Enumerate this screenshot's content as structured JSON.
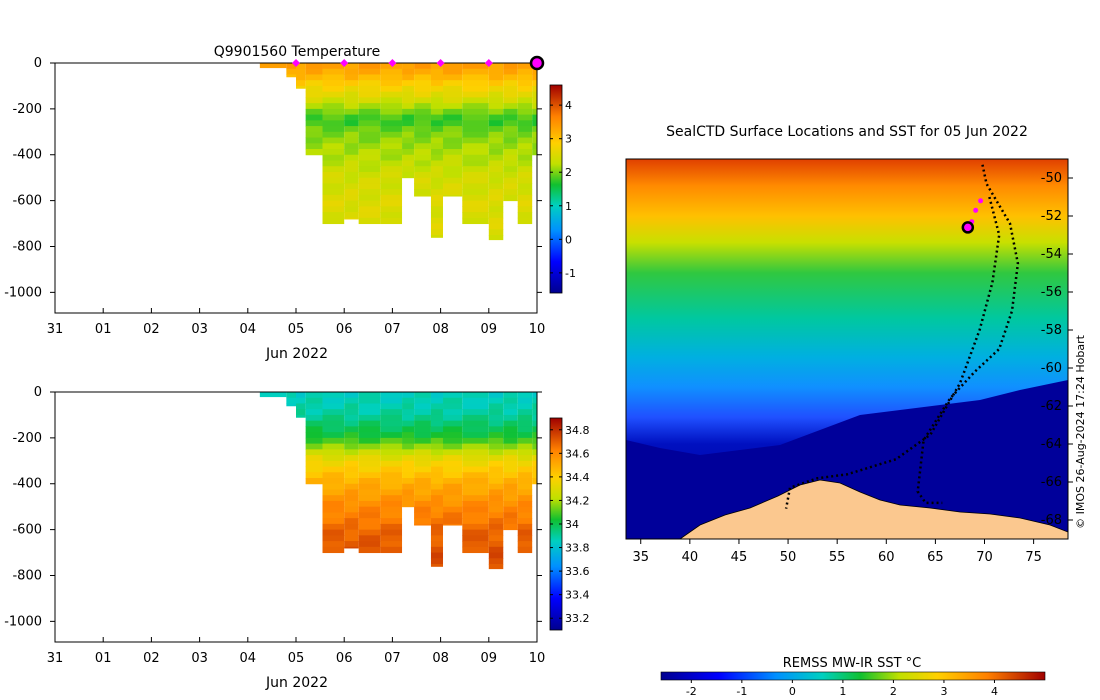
{
  "chart_data": [
    {
      "type": "heatmap",
      "title": "Q9901560  Temperature",
      "xlabel": "Jun 2022",
      "ylabel": "",
      "x_ticks": [
        "31",
        "01",
        "02",
        "03",
        "04",
        "05",
        "06",
        "07",
        "08",
        "09",
        "10"
      ],
      "x_range_days": [
        0,
        10
      ],
      "ylim": [
        -1090,
        0
      ],
      "y_ticks": [
        0,
        -200,
        -400,
        -600,
        -800,
        -1000
      ],
      "y_tick_labels": [
        "0",
        "-200",
        "-400",
        "-600",
        "-800",
        "-1000"
      ],
      "colorbar": {
        "range": [
          -1.6,
          4.6
        ],
        "ticks": [
          4,
          3,
          2,
          1,
          0,
          -1
        ],
        "tick_labels": [
          "4",
          "3",
          "2",
          "1",
          "0",
          "-1"
        ]
      },
      "profile_markers_day": [
        5,
        6,
        7,
        8,
        9
      ],
      "current_position_day": 10,
      "profiles": [
        {
          "day": 4.25,
          "max_depth": 20
        },
        {
          "day": 4.8,
          "max_depth": 60
        },
        {
          "day": 5.0,
          "max_depth": 110
        },
        {
          "day": 5.2,
          "max_depth": 400
        },
        {
          "day": 5.55,
          "max_depth": 700
        },
        {
          "day": 6.0,
          "max_depth": 680
        },
        {
          "day": 6.3,
          "max_depth": 700
        },
        {
          "day": 6.75,
          "max_depth": 700
        },
        {
          "day": 7.2,
          "max_depth": 500
        },
        {
          "day": 7.45,
          "max_depth": 580
        },
        {
          "day": 7.8,
          "max_depth": 760
        },
        {
          "day": 8.05,
          "max_depth": 580
        },
        {
          "day": 8.45,
          "max_depth": 700
        },
        {
          "day": 9.0,
          "max_depth": 770
        },
        {
          "day": 9.3,
          "max_depth": 600
        },
        {
          "day": 9.6,
          "max_depth": 700
        },
        {
          "day": 9.9,
          "max_depth": 400
        }
      ],
      "temperature_profile": {
        "depths": [
          0,
          50,
          100,
          150,
          200,
          250,
          300,
          400,
          500,
          600,
          800
        ],
        "values": [
          3.4,
          3.2,
          2.8,
          2.5,
          2.1,
          1.7,
          2.0,
          2.2,
          2.4,
          2.5,
          2.5
        ]
      }
    },
    {
      "type": "heatmap",
      "title": "",
      "xlabel": "Jun 2022",
      "ylabel": "",
      "x_ticks": [
        "31",
        "01",
        "02",
        "03",
        "04",
        "05",
        "06",
        "07",
        "08",
        "09",
        "10"
      ],
      "x_range_days": [
        0,
        10
      ],
      "ylim": [
        -1090,
        0
      ],
      "y_ticks": [
        0,
        -200,
        -400,
        -600,
        -800,
        -1000
      ],
      "y_tick_labels": [
        "0",
        "-200",
        "-400",
        "-600",
        "-800",
        "-1000"
      ],
      "colorbar": {
        "range": [
          33.1,
          34.9
        ],
        "ticks": [
          34.8,
          34.6,
          34.4,
          34.2,
          34,
          33.8,
          33.6,
          33.4,
          33.2
        ],
        "tick_labels": [
          "34.8",
          "34.6",
          "34.4",
          "34.2",
          "34",
          "33.8",
          "33.6",
          "33.4",
          "33.2"
        ]
      },
      "salinity_profile": {
        "depths": [
          0,
          100,
          200,
          250,
          300,
          400,
          500,
          600,
          700,
          800
        ],
        "values": [
          33.85,
          33.9,
          34.05,
          34.2,
          34.35,
          34.5,
          34.6,
          34.68,
          34.73,
          34.75
        ]
      }
    },
    {
      "type": "map",
      "title": "SealCTD Surface Locations and SST for 05 Jun 2022",
      "xlim": [
        33.5,
        78.5
      ],
      "ylim": [
        -69,
        -49
      ],
      "x_ticks": [
        35,
        40,
        45,
        50,
        55,
        60,
        65,
        70,
        75
      ],
      "x_tick_labels": [
        "35",
        "40",
        "45",
        "50",
        "55",
        "60",
        "65",
        "70",
        "75"
      ],
      "y_ticks": [
        -50,
        -52,
        -54,
        -56,
        -58,
        -60,
        -62,
        -64,
        -66,
        -68
      ],
      "y_tick_labels": [
        "-50",
        "-52",
        "-54",
        "-56",
        "-58",
        "-60",
        "-62",
        "-64",
        "-66",
        "-68"
      ],
      "track": [
        [
          69.8,
          -49.3
        ],
        [
          70.2,
          -50.3
        ],
        [
          71.0,
          -51.0
        ],
        [
          72.6,
          -52.4
        ],
        [
          73.4,
          -54.5
        ],
        [
          72.8,
          -57.0
        ],
        [
          71.5,
          -59.0
        ],
        [
          69.0,
          -60.2
        ],
        [
          66.5,
          -61.6
        ],
        [
          63.8,
          -63.8
        ],
        [
          63.2,
          -66.5
        ],
        [
          64.0,
          -67.1
        ],
        [
          65.7,
          -67.1
        ]
      ],
      "track2": [
        [
          70.5,
          -51.0
        ],
        [
          71.5,
          -53.0
        ],
        [
          70.8,
          -55.5
        ],
        [
          69.5,
          -58.0
        ],
        [
          67.5,
          -60.8
        ],
        [
          64.5,
          -63.5
        ],
        [
          61.0,
          -64.8
        ],
        [
          56.0,
          -65.6
        ],
        [
          53.0,
          -65.8
        ],
        [
          50.2,
          -66.3
        ],
        [
          49.8,
          -67.4
        ]
      ],
      "magenta_points": [
        [
          69.6,
          -51.2
        ],
        [
          69.1,
          -51.7
        ],
        [
          68.7,
          -52.3
        ]
      ],
      "current_position": [
        68.3,
        -52.6
      ],
      "sst_colorbar": {
        "label": "REMSS MW-IR SST °C",
        "range": [
          -2.6,
          5.0
        ],
        "ticks": [
          -2,
          -1,
          0,
          1,
          2,
          3,
          4
        ],
        "tick_labels": [
          "-2",
          "-1",
          "0",
          "1",
          "2",
          "3",
          "4"
        ]
      },
      "credit": "© IMOS 26-Aug-2024 17:24 Hobart"
    }
  ]
}
